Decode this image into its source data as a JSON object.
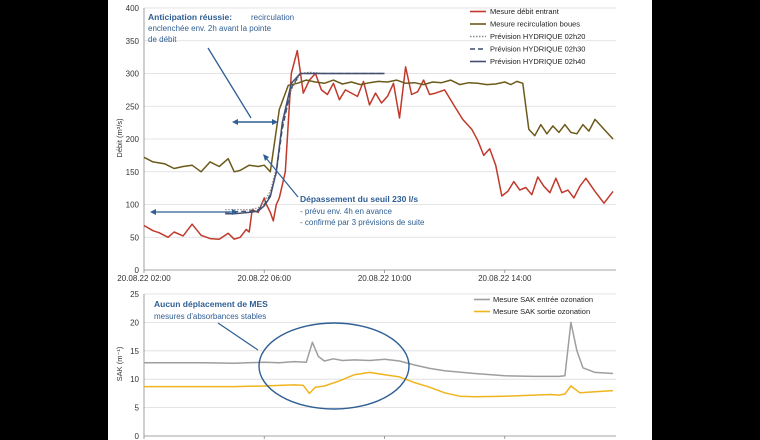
{
  "chart_data": [
    {
      "type": "line",
      "ylabel": "Débit (m³/s)",
      "ylim": [
        0,
        400
      ],
      "yticks": [
        "0",
        "50",
        "100",
        "150",
        "200",
        "250",
        "300",
        "350",
        "400"
      ],
      "xticks": [
        {
          "t": 2,
          "label": "20.08.22 02:00"
        },
        {
          "t": 6,
          "label": "20.08.22 06:00"
        },
        {
          "t": 10,
          "label": "20.08.22 10:00"
        },
        {
          "t": 14,
          "label": "20.08.22 14:00"
        }
      ],
      "xlim_hours": [
        2,
        17.7
      ],
      "legend_position": "top-right",
      "series": [
        {
          "name": "Mesure débit entrant",
          "color": "#c0392b",
          "t": [
            2,
            2.3,
            2.5,
            2.8,
            3,
            3.3,
            3.6,
            3.9,
            4.2,
            4.5,
            4.8,
            5,
            5.2,
            5.4,
            5.5,
            5.6,
            5.8,
            6,
            6.05,
            6.2,
            6.3,
            6.4,
            6.5,
            6.7,
            6.9,
            7.1,
            7.3,
            7.5,
            7.7,
            7.9,
            8.1,
            8.3,
            8.5,
            8.7,
            8.9,
            9.1,
            9.3,
            9.5,
            9.7,
            9.9,
            10.1,
            10.3,
            10.5,
            10.7,
            10.9,
            11.1,
            11.3,
            11.5,
            11.7,
            12,
            12.3,
            12.6,
            12.9,
            13.1,
            13.3,
            13.5,
            13.7,
            13.9,
            14.1,
            14.3,
            14.5,
            14.7,
            14.9,
            15.1,
            15.3,
            15.5,
            15.7,
            15.9,
            16.1,
            16.3,
            16.5,
            16.7,
            17,
            17.3,
            17.6
          ],
          "y": [
            68,
            60,
            57,
            50,
            58,
            52,
            70,
            53,
            48,
            47,
            56,
            47,
            50,
            62,
            58,
            92,
            88,
            110,
            102,
            88,
            75,
            100,
            110,
            150,
            300,
            335,
            270,
            290,
            300,
            275,
            268,
            285,
            260,
            275,
            270,
            265,
            288,
            252,
            270,
            255,
            265,
            285,
            232,
            310,
            268,
            272,
            290,
            268,
            270,
            275,
            252,
            230,
            215,
            198,
            175,
            185,
            160,
            113,
            120,
            135,
            122,
            126,
            115,
            142,
            128,
            118,
            140,
            118,
            122,
            110,
            128,
            140,
            120,
            102,
            120
          ]
        },
        {
          "name": "Mesure recirculation boues",
          "color": "#6b5a1a",
          "t": [
            2,
            2.3,
            2.7,
            3,
            3.3,
            3.6,
            3.9,
            4.2,
            4.5,
            4.8,
            5,
            5.2,
            5.5,
            5.8,
            6,
            6.2,
            6.5,
            6.8,
            7.1,
            7.4,
            7.7,
            8,
            8.3,
            8.6,
            8.9,
            9.2,
            9.5,
            9.8,
            10.1,
            10.4,
            10.7,
            11,
            11.3,
            11.6,
            11.9,
            12.2,
            12.5,
            12.8,
            13.1,
            13.4,
            13.7,
            14,
            14.2,
            14.4,
            14.6,
            14.8,
            15,
            15.2,
            15.4,
            15.6,
            15.8,
            16,
            16.2,
            16.4,
            16.6,
            16.8,
            17,
            17.3,
            17.6
          ],
          "y": [
            172,
            165,
            162,
            155,
            158,
            160,
            150,
            165,
            158,
            170,
            150,
            152,
            160,
            158,
            160,
            150,
            245,
            282,
            285,
            290,
            287,
            285,
            290,
            284,
            287,
            283,
            286,
            288,
            287,
            290,
            285,
            286,
            283,
            287,
            286,
            290,
            283,
            286,
            285,
            283,
            284,
            287,
            283,
            288,
            285,
            215,
            205,
            222,
            208,
            220,
            210,
            222,
            210,
            208,
            222,
            212,
            230,
            215,
            200
          ]
        },
        {
          "name": "Prévision HYDRIQUE 02h20",
          "color": "#888888",
          "dash": "1.5,1.5",
          "t": [
            4.7,
            5,
            5.5,
            5.8,
            6,
            6.2,
            6.4,
            6.6,
            6.9,
            7.2,
            7.5,
            8,
            8.5,
            9,
            9.5,
            10
          ],
          "y": [
            92,
            92,
            92,
            95,
            105,
            120,
            155,
            220,
            275,
            300,
            302,
            300,
            300,
            300,
            300,
            300
          ]
        },
        {
          "name": "Prévision HYDRIQUE 02h30",
          "color": "#3c4a6e",
          "dash": "5,3",
          "t": [
            4.7,
            5,
            5.5,
            5.8,
            6,
            6.2,
            6.4,
            6.6,
            6.9,
            7.2,
            7.5,
            8,
            8.5,
            9,
            9.5,
            10
          ],
          "y": [
            88,
            89,
            90,
            92,
            100,
            115,
            148,
            215,
            278,
            300,
            300,
            300,
            300,
            300,
            300,
            300
          ]
        },
        {
          "name": "Prévision HYDRIQUE 02h40",
          "color": "#445070",
          "t": [
            4.7,
            5,
            5.5,
            5.8,
            6,
            6.2,
            6.4,
            6.6,
            6.9,
            7.2,
            7.5,
            8,
            8.5,
            9,
            9.5,
            10
          ],
          "y": [
            86,
            86,
            88,
            90,
            98,
            112,
            150,
            225,
            285,
            300,
            300,
            300,
            300,
            300,
            300,
            300
          ]
        }
      ]
    },
    {
      "type": "line",
      "ylabel": "SAK (m⁻¹)",
      "ylim": [
        0,
        25
      ],
      "yticks": [
        "0",
        "5",
        "10",
        "15",
        "20",
        "25"
      ],
      "xticks": [
        {
          "t": 2,
          "label": "20.08.22 02:00"
        },
        {
          "t": 6,
          "label": "20.08.22 06:00"
        },
        {
          "t": 10,
          "label": "20.08.22 10:00"
        },
        {
          "t": 14,
          "label": "20.08.22 14:00"
        }
      ],
      "xlim_hours": [
        2,
        17.7
      ],
      "legend_position": "top-right",
      "series": [
        {
          "name": "Mesure SAK entrée ozonation",
          "color": "#9e9e9e",
          "t": [
            2,
            3,
            4,
            5,
            6,
            6.5,
            7,
            7.4,
            7.6,
            7.8,
            8,
            8.3,
            8.6,
            9,
            9.5,
            10,
            10.5,
            11,
            11.5,
            12,
            13,
            14,
            15,
            15.8,
            16,
            16.2,
            16.4,
            16.6,
            17,
            17.6
          ],
          "y": [
            12.9,
            12.9,
            12.9,
            12.8,
            13,
            12.9,
            13.1,
            13,
            16.5,
            14,
            13.2,
            13.6,
            13.3,
            13.4,
            13.3,
            13.5,
            13.2,
            12.5,
            11.9,
            11.5,
            11,
            10.6,
            10.5,
            10.5,
            10.6,
            20,
            15,
            12,
            11.2,
            11
          ]
        },
        {
          "name": "Mesure SAK sortie ozonation",
          "color": "#f0b41e",
          "t": [
            2,
            3,
            4,
            5,
            6,
            6.5,
            7,
            7.3,
            7.5,
            7.7,
            8,
            8.5,
            9,
            9.5,
            10,
            10.5,
            11,
            11.5,
            12,
            12.5,
            13,
            14,
            15,
            15.5,
            15.8,
            16,
            16.2,
            16.5,
            17,
            17.6
          ],
          "y": [
            8.7,
            8.7,
            8.7,
            8.7,
            8.8,
            8.9,
            9,
            8.9,
            7.5,
            8.6,
            8.8,
            9.7,
            10.8,
            11.2,
            10.8,
            10.4,
            9.4,
            8.6,
            7.6,
            7,
            6.9,
            7,
            7.2,
            7.3,
            7.2,
            7.4,
            8.8,
            7.6,
            7.8,
            8
          ]
        }
      ]
    }
  ],
  "annotations": {
    "anticipation_title": "Anticipation réussie:",
    "anticipation_l1": "recirculation",
    "anticipation_l2": "enclenchée env. 2h avant la pointe",
    "anticipation_l3": "de débit",
    "depassement_title": "Dépassement du seuil 230 l/s",
    "depassement_l1": "- prévu env. 4h en avance",
    "depassement_l2": "- confirmé par 3 prévisions de suite",
    "mes_title": "Aucun déplacement de MES",
    "mes_l1": "mesures d'absorbances stables"
  },
  "colors": {
    "annotation": "#2f5f94"
  }
}
